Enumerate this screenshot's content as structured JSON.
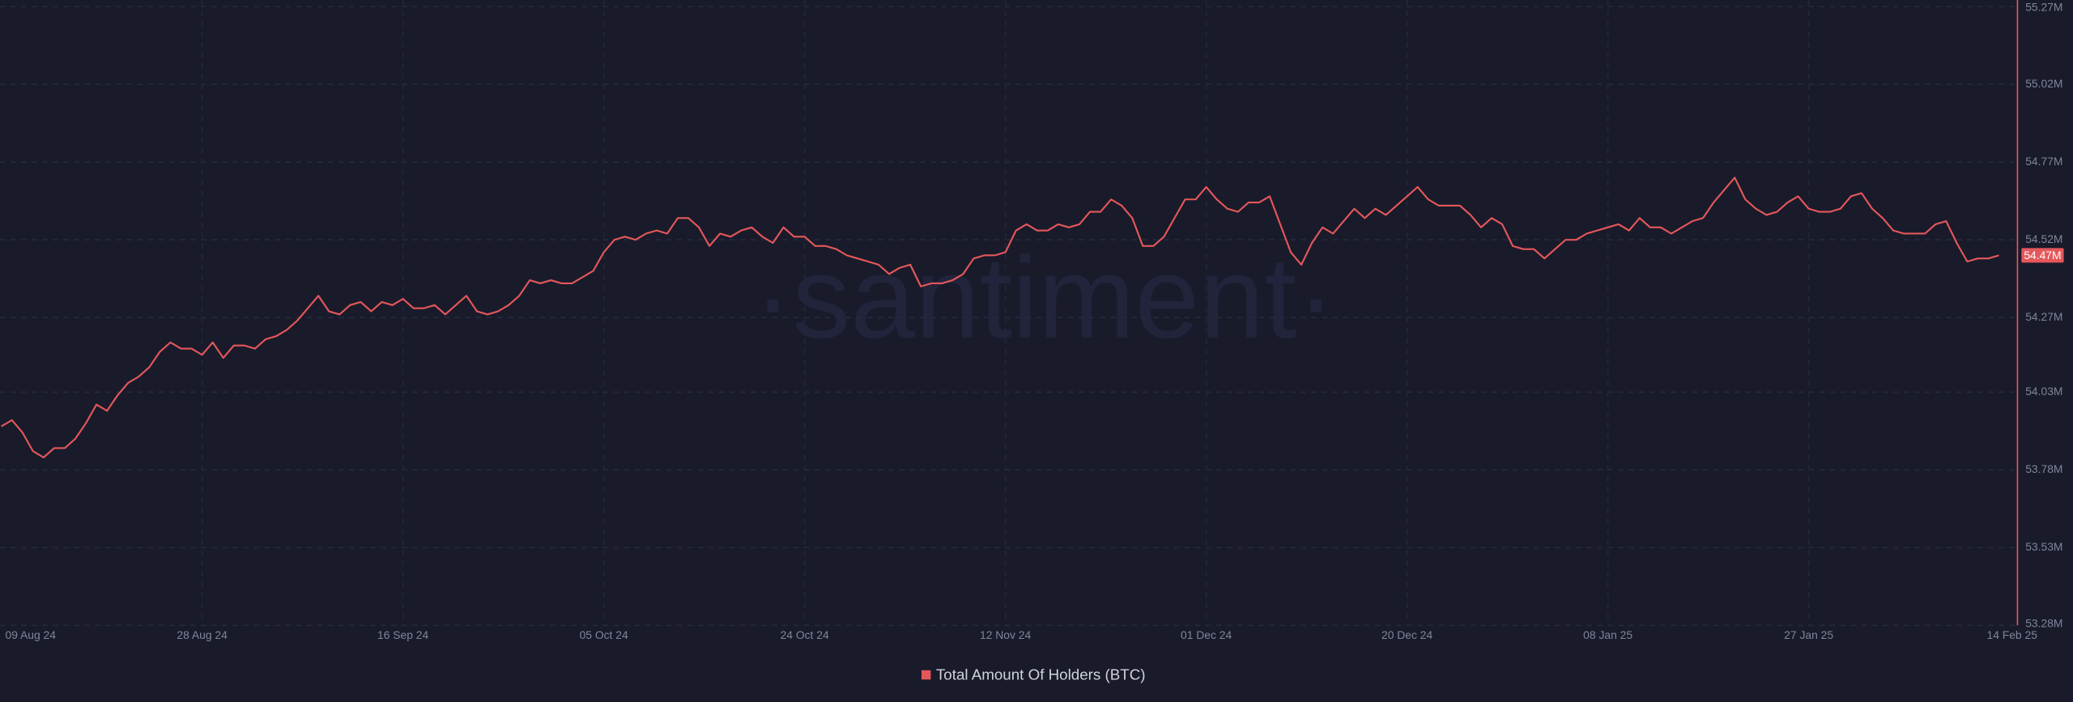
{
  "chart_data": {
    "type": "line",
    "watermark": "·santiment·",
    "categories": [
      "09 Aug 24",
      null,
      null,
      null,
      null,
      null,
      null,
      null,
      null,
      null,
      null,
      null,
      null,
      null,
      null,
      null,
      null,
      null,
      null,
      "28 Aug 24",
      null,
      null,
      null,
      null,
      null,
      null,
      null,
      null,
      null,
      null,
      null,
      null,
      null,
      null,
      null,
      null,
      null,
      null,
      "16 Sep 24",
      null,
      null,
      null,
      null,
      null,
      null,
      null,
      null,
      null,
      null,
      null,
      null,
      null,
      null,
      null,
      null,
      null,
      null,
      "05 Oct 24",
      null,
      null,
      null,
      null,
      null,
      null,
      null,
      null,
      null,
      null,
      null,
      null,
      null,
      null,
      null,
      null,
      null,
      null,
      "24 Oct 24",
      null,
      null,
      null,
      null,
      null,
      null,
      null,
      null,
      null,
      null,
      null,
      null,
      null,
      null,
      null,
      null,
      null,
      null,
      "12 Nov 24",
      null,
      null,
      null,
      null,
      null,
      null,
      null,
      null,
      null,
      null,
      null,
      null,
      null,
      null,
      null,
      null,
      null,
      null,
      "01 Dec 24",
      null,
      null,
      null,
      null,
      null,
      null,
      null,
      null,
      null,
      null,
      null,
      null,
      null,
      null,
      null,
      null,
      null,
      null,
      "20 Dec 24",
      null,
      null,
      null,
      null,
      null,
      null,
      null,
      null,
      null,
      null,
      null,
      null,
      null,
      null,
      null,
      null,
      null,
      null,
      "08 Jan 25",
      null,
      null,
      null,
      null,
      null,
      null,
      null,
      null,
      null,
      null,
      null,
      null,
      null,
      null,
      null,
      null,
      null,
      null,
      "27 Jan 25",
      null,
      null,
      null,
      null,
      null,
      null,
      null,
      null,
      null,
      null,
      null,
      null,
      null,
      null,
      null,
      null,
      null,
      "14 Feb 25"
    ],
    "series": [
      {
        "name": "Total Amount Of Holders (BTC)",
        "color": "#e5575a",
        "values": [
          53.92,
          53.94,
          53.9,
          53.84,
          53.82,
          53.85,
          53.85,
          53.88,
          53.93,
          53.99,
          53.97,
          54.02,
          54.06,
          54.08,
          54.11,
          54.16,
          54.19,
          54.17,
          54.17,
          54.15,
          54.19,
          54.14,
          54.18,
          54.18,
          54.17,
          54.2,
          54.21,
          54.23,
          54.26,
          54.3,
          54.34,
          54.29,
          54.28,
          54.31,
          54.32,
          54.29,
          54.32,
          54.31,
          54.33,
          54.3,
          54.3,
          54.31,
          54.28,
          54.31,
          54.34,
          54.29,
          54.28,
          54.29,
          54.31,
          54.34,
          54.39,
          54.38,
          54.39,
          54.38,
          54.38,
          54.4,
          54.42,
          54.48,
          54.52,
          54.53,
          54.52,
          54.54,
          54.55,
          54.54,
          54.59,
          54.59,
          54.56,
          54.5,
          54.54,
          54.53,
          54.55,
          54.56,
          54.53,
          54.51,
          54.56,
          54.53,
          54.53,
          54.5,
          54.5,
          54.49,
          54.47,
          54.46,
          54.45,
          54.44,
          54.41,
          54.43,
          54.44,
          54.37,
          54.38,
          54.38,
          54.39,
          54.41,
          54.46,
          54.47,
          54.47,
          54.48,
          54.55,
          54.57,
          54.55,
          54.55,
          54.57,
          54.56,
          54.57,
          54.61,
          54.61,
          54.65,
          54.63,
          54.59,
          54.5,
          54.5,
          54.53,
          54.59,
          54.65,
          54.65,
          54.69,
          54.65,
          54.62,
          54.61,
          54.64,
          54.64,
          54.66,
          54.57,
          54.48,
          54.44,
          54.51,
          54.56,
          54.54,
          54.58,
          54.62,
          54.59,
          54.62,
          54.6,
          54.63,
          54.66,
          54.69,
          54.65,
          54.63,
          54.63,
          54.63,
          54.6,
          54.56,
          54.59,
          54.57,
          54.5,
          54.49,
          54.49,
          54.46,
          54.49,
          54.52,
          54.52,
          54.54,
          54.55,
          54.56,
          54.57,
          54.55,
          54.59,
          54.56,
          54.56,
          54.54,
          54.56,
          54.58,
          54.59,
          54.64,
          54.68,
          54.72,
          54.65,
          54.62,
          54.6,
          54.61,
          54.64,
          54.66,
          54.62,
          54.61,
          54.61,
          54.62,
          54.66,
          54.67,
          54.62,
          54.59,
          54.55,
          54.54,
          54.54,
          54.54,
          54.57,
          54.58,
          54.51,
          54.45,
          54.46,
          54.46,
          54.47
        ]
      }
    ],
    "current": {
      "value": 54.47,
      "label": "54.47M"
    },
    "ylim": [
      53.28,
      55.27
    ],
    "yticks": [
      {
        "value": 53.28,
        "label": "53.28M"
      },
      {
        "value": 53.53,
        "label": "53.53M"
      },
      {
        "value": 53.78,
        "label": "53.78M"
      },
      {
        "value": 54.03,
        "label": "54.03M"
      },
      {
        "value": 54.27,
        "label": "54.27M"
      },
      {
        "value": 54.52,
        "label": "54.52M"
      },
      {
        "value": 54.77,
        "label": "54.77M"
      },
      {
        "value": 55.02,
        "label": "55.02M"
      },
      {
        "value": 55.27,
        "label": "55.27M"
      }
    ],
    "grid": true,
    "legend": "bottom"
  }
}
